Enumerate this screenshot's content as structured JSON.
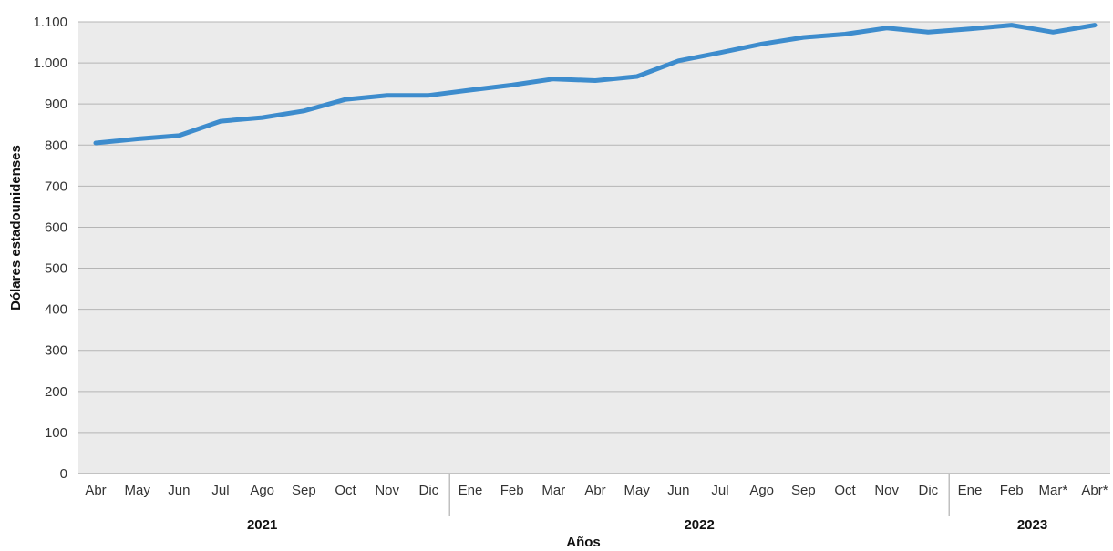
{
  "chart_data": {
    "type": "line",
    "title": "",
    "xlabel": "Años",
    "ylabel": "Dólares estadounidenses",
    "ylim": [
      0,
      1100
    ],
    "yticks": [
      0,
      100,
      200,
      300,
      400,
      500,
      600,
      700,
      800,
      900,
      1000,
      1100
    ],
    "ytick_labels": [
      "0",
      "100",
      "200",
      "300",
      "400",
      "500",
      "600",
      "700",
      "800",
      "900",
      "1.000",
      "1.100"
    ],
    "grid": true,
    "legend": "none",
    "categories": [
      "Abr",
      "May",
      "Jun",
      "Jul",
      "Ago",
      "Sep",
      "Oct",
      "Nov",
      "Dic",
      "Ene",
      "Feb",
      "Mar",
      "Abr",
      "May",
      "Jun",
      "Jul",
      "Ago",
      "Sep",
      "Oct",
      "Nov",
      "Dic",
      "Ene",
      "Feb",
      "Mar*",
      "Abr*"
    ],
    "year_groups": [
      {
        "label": "2021",
        "start": 0,
        "end": 8
      },
      {
        "label": "2022",
        "start": 9,
        "end": 20
      },
      {
        "label": "2023",
        "start": 21,
        "end": 24
      }
    ],
    "series": [
      {
        "values": [
          805,
          815,
          823,
          858,
          867,
          883,
          911,
          921,
          921,
          934,
          946,
          961,
          957,
          967,
          1005,
          1025,
          1046,
          1062,
          1070,
          1085,
          1075,
          1083,
          1092,
          1075,
          1092
        ],
        "color": "#3d8ccd"
      }
    ],
    "plot_background": "#ebebeb",
    "grid_color": "#b5b5b5"
  }
}
